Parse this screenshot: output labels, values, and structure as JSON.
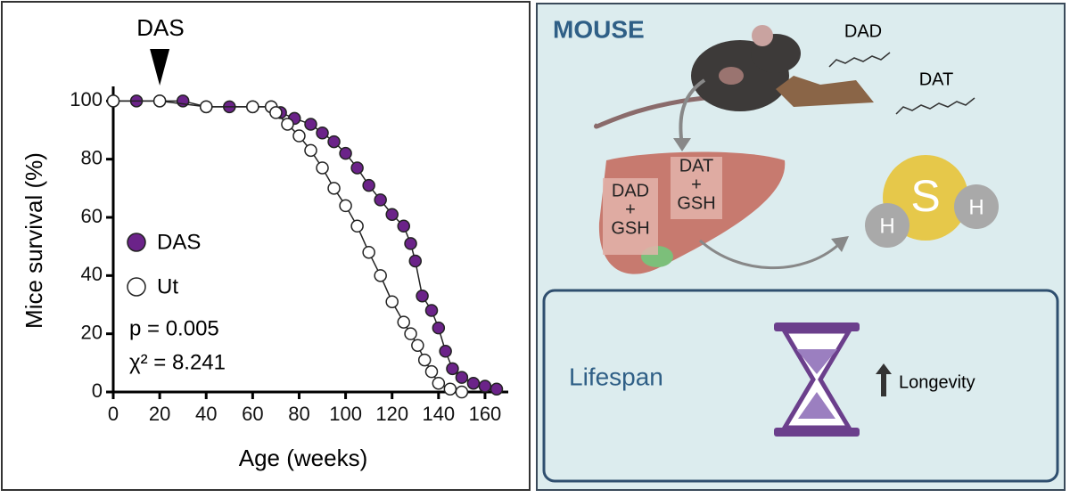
{
  "chart_data": {
    "type": "line",
    "annotation": "DAS",
    "annotation_x": 20,
    "stats": [
      "p = 0.005",
      "χ² = 8.241"
    ],
    "x_label": "Age (weeks)",
    "y_label": "Mice survival (%)",
    "xlim": [
      0,
      170
    ],
    "xticks": [
      0,
      20,
      40,
      60,
      80,
      100,
      120,
      140,
      160
    ],
    "ylim": [
      0,
      105
    ],
    "yticks": [
      0,
      20,
      40,
      60,
      80,
      100
    ],
    "series": [
      {
        "name": "DAS",
        "color": "#6b2389",
        "x": [
          0,
          10,
          20,
          30,
          40,
          50,
          60,
          68,
          72,
          78,
          85,
          90,
          95,
          100,
          105,
          110,
          115,
          120,
          125,
          128,
          130,
          133,
          137,
          140,
          143,
          146,
          150,
          155,
          160,
          165
        ],
        "values": [
          100,
          100,
          100,
          100,
          98,
          98,
          98,
          98,
          96,
          94,
          92,
          89,
          86,
          82,
          77,
          71,
          66,
          61,
          57,
          51,
          45,
          33,
          28,
          22,
          14,
          8,
          5,
          3,
          2,
          1
        ]
      },
      {
        "name": "Ut",
        "color": "#ffffff",
        "x": [
          0,
          20,
          40,
          60,
          68,
          70,
          75,
          80,
          85,
          90,
          95,
          100,
          105,
          110,
          115,
          120,
          125,
          128,
          131,
          134,
          137,
          140,
          145,
          150
        ],
        "values": [
          100,
          100,
          98,
          98,
          98,
          96,
          92,
          88,
          83,
          77,
          70,
          64,
          57,
          48,
          40,
          31,
          24,
          20,
          16,
          11,
          7,
          3,
          1,
          0
        ]
      }
    ]
  },
  "diagram": {
    "title": "MOUSE",
    "compounds": [
      "DAD",
      "DAT"
    ],
    "liver_labels": [
      [
        "DAD",
        "+",
        "GSH"
      ],
      [
        "DAT",
        "+",
        "GSH"
      ]
    ],
    "molecule": [
      "S",
      "H",
      "H"
    ],
    "outcome": {
      "label": "Lifespan",
      "effect": "Longevity"
    }
  }
}
